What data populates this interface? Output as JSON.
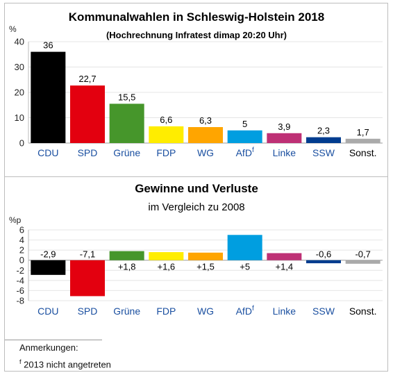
{
  "chart_data": [
    {
      "type": "bar",
      "title": "Kommunalwahlen in Schleswig-Holstein 2018",
      "subtitle": "(Hochrechnung Infratest dimap 20:20 Uhr)",
      "ylabel": "%",
      "ylim": [
        0,
        40
      ],
      "yticks": [
        "0",
        "10",
        "20",
        "30",
        "40"
      ],
      "categories": [
        "CDU",
        "SPD",
        "Grüne",
        "FDP",
        "WG",
        "AfD",
        "Linke",
        "SSW",
        "Sonst."
      ],
      "category_superscripts": [
        "",
        "",
        "",
        "",
        "",
        "f",
        "",
        "",
        ""
      ],
      "values": [
        36,
        22.7,
        15.5,
        6.6,
        6.3,
        5,
        3.9,
        2.3,
        1.7
      ],
      "value_labels": [
        "36",
        "22,7",
        "15,5",
        "6,6",
        "6,3",
        "5",
        "3,9",
        "2,3",
        "1,7"
      ],
      "grid": true
    },
    {
      "type": "bar",
      "title": "Gewinne und Verluste",
      "subtitle": "im Vergleich zu 2008",
      "ylabel": "%p",
      "ylim": [
        -8,
        6
      ],
      "yticks": [
        "6",
        "4",
        "2",
        "0",
        "-2",
        "-4",
        "-6",
        "-8"
      ],
      "categories": [
        "CDU",
        "SPD",
        "Grüne",
        "FDP",
        "WG",
        "AfD",
        "Linke",
        "SSW",
        "Sonst."
      ],
      "category_superscripts": [
        "",
        "",
        "",
        "",
        "",
        "f",
        "",
        "",
        ""
      ],
      "values": [
        -2.9,
        -7.1,
        1.8,
        1.6,
        1.5,
        5,
        1.4,
        -0.6,
        -0.7
      ],
      "value_labels": [
        "-2,9",
        "-7,1",
        "+1,8",
        "+1,6",
        "+1,5",
        "+5",
        "+1,4",
        "-0,6",
        "-0,7"
      ],
      "grid": true
    }
  ],
  "colors": {
    "bars": [
      "#000000",
      "#e3000f",
      "#46962b",
      "#ffed00",
      "#ffa500",
      "#009ee0",
      "#be3075",
      "#003c8f",
      "#aaaaaa"
    ],
    "category_label": "#1a4fa0",
    "category_label_black": "#000000"
  },
  "notes": {
    "title": "Anmerkungen:",
    "marker": "f",
    "text": "2013 nicht angetreten"
  }
}
